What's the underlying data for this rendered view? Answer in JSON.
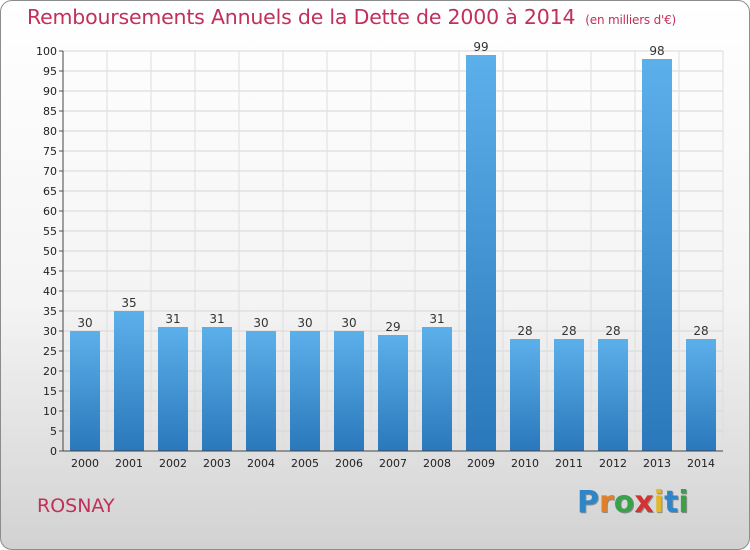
{
  "header": {
    "title": "Remboursements Annuels de la Dette de 2000 à 2014",
    "unit": "(en milliers d'€)"
  },
  "footer": {
    "commune": "ROSNAY",
    "logo_letters": [
      "P",
      "r",
      "o",
      "x",
      "i",
      "t",
      "i"
    ],
    "logo_colors": [
      "#2e86c8",
      "#e2802a",
      "#3aa04a",
      "#d23434",
      "#e2b82a",
      "#2e86c8",
      "#3aa04a"
    ]
  },
  "chart_data": {
    "type": "bar",
    "categories": [
      "2000",
      "2001",
      "2002",
      "2003",
      "2004",
      "2005",
      "2006",
      "2007",
      "2008",
      "2009",
      "2010",
      "2011",
      "2012",
      "2013",
      "2014"
    ],
    "values": [
      30,
      35,
      31,
      31,
      30,
      30,
      30,
      29,
      31,
      99,
      28,
      28,
      28,
      98,
      28
    ],
    "title": "Remboursements Annuels de la Dette de 2000 à 2014",
    "xlabel": "",
    "ylabel": "",
    "ylim": [
      0,
      100
    ],
    "ytick_step": 5,
    "grid": true,
    "bar_color_top": "#5cb0ea",
    "bar_color_bottom": "#2a78bb"
  }
}
